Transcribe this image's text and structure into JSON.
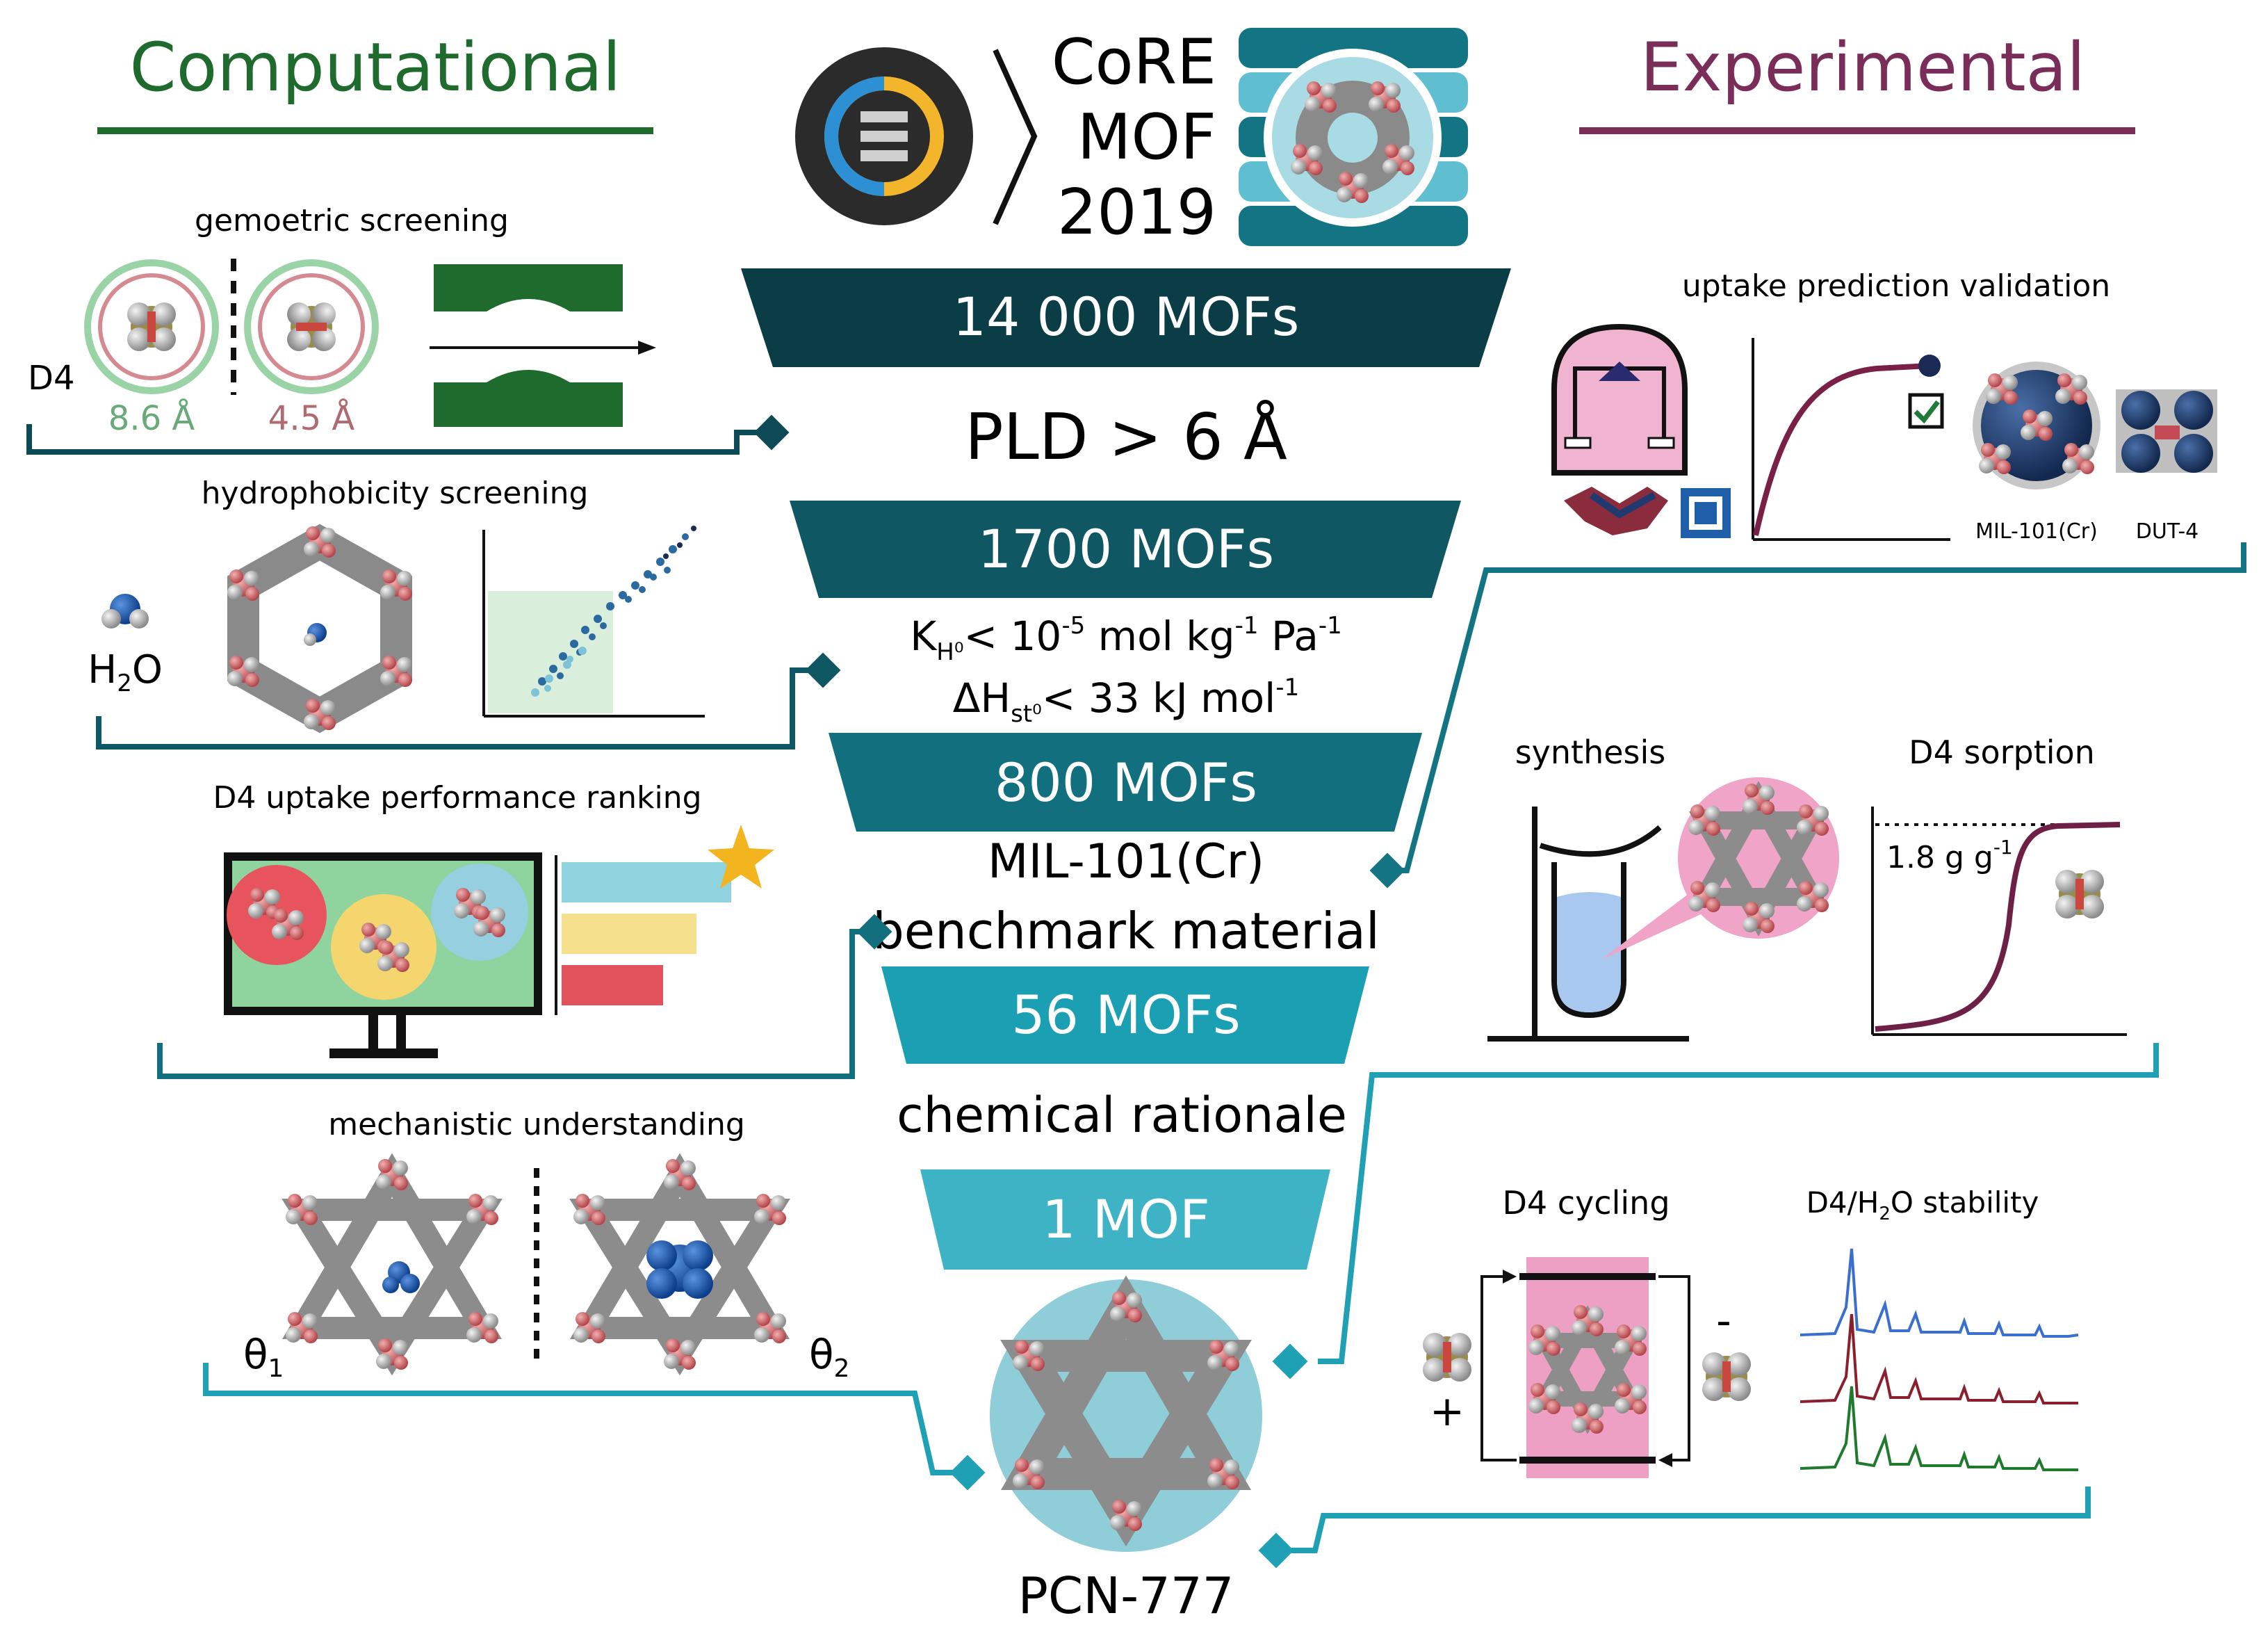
{
  "headings": {
    "computational": "Computational",
    "experimental": "Experimental"
  },
  "database": {
    "line1": "CoRE",
    "line2": "MOF",
    "line3": "2019"
  },
  "funnel": {
    "stage1": "14 000 MOFs",
    "criterion1": "PLD > 6 Å",
    "stage2": "1700 MOFs",
    "criterion2a_main": "K",
    "criterion2a_sub": "H⁰",
    "criterion2a_rest": "< 10",
    "criterion2a_exp": "-5",
    "criterion2a_unit": " mol kg",
    "criterion2a_unit_exp": "-1",
    "criterion2a_unit2": " Pa",
    "criterion2a_unit2_exp": "-1",
    "criterion2b_main": "ΔH",
    "criterion2b_sub": "st⁰",
    "criterion2b_rest": "< 33 kJ mol",
    "criterion2b_exp": "-1",
    "stage3": "800 MOFs",
    "criterion3a": "MIL-101(Cr)",
    "criterion3b": "benchmark material",
    "stage4": "56 MOFs",
    "criterion4": "chemical rationale",
    "stage5": "1 MOF",
    "final": "PCN-777"
  },
  "computational_panels": {
    "geometric": {
      "title": "gemoetric screening",
      "molecule": "D4",
      "dim1": "8.6 Å",
      "dim2": "4.5 Å"
    },
    "hydrophobicity": {
      "title": "hydrophobicity screening",
      "water_main": "H",
      "water_sub": "2",
      "water_end": "O"
    },
    "ranking": {
      "title": "D4 uptake performance ranking"
    },
    "mechanistic": {
      "title": "mechanistic understanding",
      "theta1_main": "θ",
      "theta1_sub": "1",
      "theta2_main": "θ",
      "theta2_sub": "2"
    }
  },
  "experimental_panels": {
    "validation": {
      "title": "uptake prediction validation",
      "mof1": "MIL-101(Cr)",
      "mof2": "DUT-4"
    },
    "synthesis": {
      "title": "synthesis"
    },
    "sorption": {
      "title": "D4 sorption",
      "capacity_main": "1.8 g g",
      "capacity_exp": "-1"
    },
    "cycling": {
      "title": "D4 cycling",
      "plus": "+",
      "minus": "-"
    },
    "stability": {
      "title_a": "D4/H",
      "title_sub": "2",
      "title_b": "O stability"
    }
  },
  "colors": {
    "computational": "#1f6b2e",
    "experimental": "#7a2d58",
    "funnel1": "#0a3d45",
    "funnel2": "#0f5763",
    "funnel3": "#12707e",
    "funnel4": "#1a9fb3",
    "funnel5": "#3fb3c6",
    "connector_dark": "#0e4a55",
    "connector_light": "#1fa0b5"
  }
}
